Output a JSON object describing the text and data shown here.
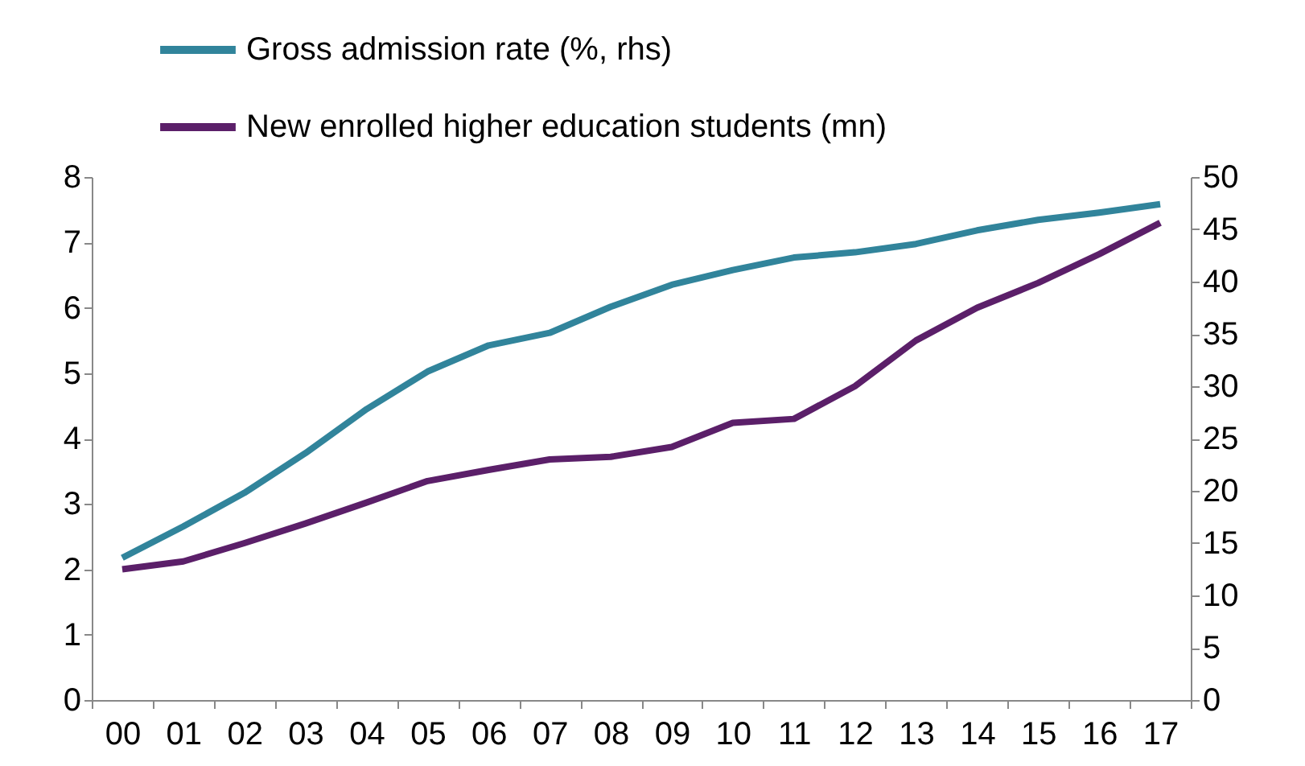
{
  "chart_data": {
    "type": "line",
    "categories": [
      "00",
      "01",
      "02",
      "03",
      "04",
      "05",
      "06",
      "07",
      "08",
      "09",
      "10",
      "11",
      "12",
      "13",
      "14",
      "15",
      "16",
      "17"
    ],
    "series": [
      {
        "name": "Gross admission rate (%, rhs)",
        "color": "#31849b",
        "axis": "y2",
        "values": [
          13.6,
          16.6,
          19.8,
          23.6,
          27.8,
          31.4,
          33.9,
          35.1,
          37.6,
          39.7,
          41.1,
          42.3,
          42.8,
          43.6,
          44.9,
          45.9,
          46.6,
          47.4
        ]
      },
      {
        "name": "New enrolled higher education students (mn)",
        "color": "#5b1f69",
        "values": [
          2.0,
          2.12,
          2.4,
          2.7,
          3.02,
          3.35,
          3.52,
          3.68,
          3.72,
          3.87,
          4.24,
          4.3,
          4.8,
          5.5,
          6.0,
          6.38,
          6.82,
          7.3
        ]
      }
    ],
    "ylim": [
      0,
      8
    ],
    "yticks": [
      0,
      1,
      2,
      3,
      4,
      5,
      6,
      7,
      8
    ],
    "y2lim": [
      0,
      50
    ],
    "y2ticks": [
      0,
      5,
      10,
      15,
      20,
      25,
      30,
      35,
      40,
      45,
      50
    ],
    "legend": "top",
    "grid": false,
    "marker": "none",
    "line_style": "solid"
  }
}
